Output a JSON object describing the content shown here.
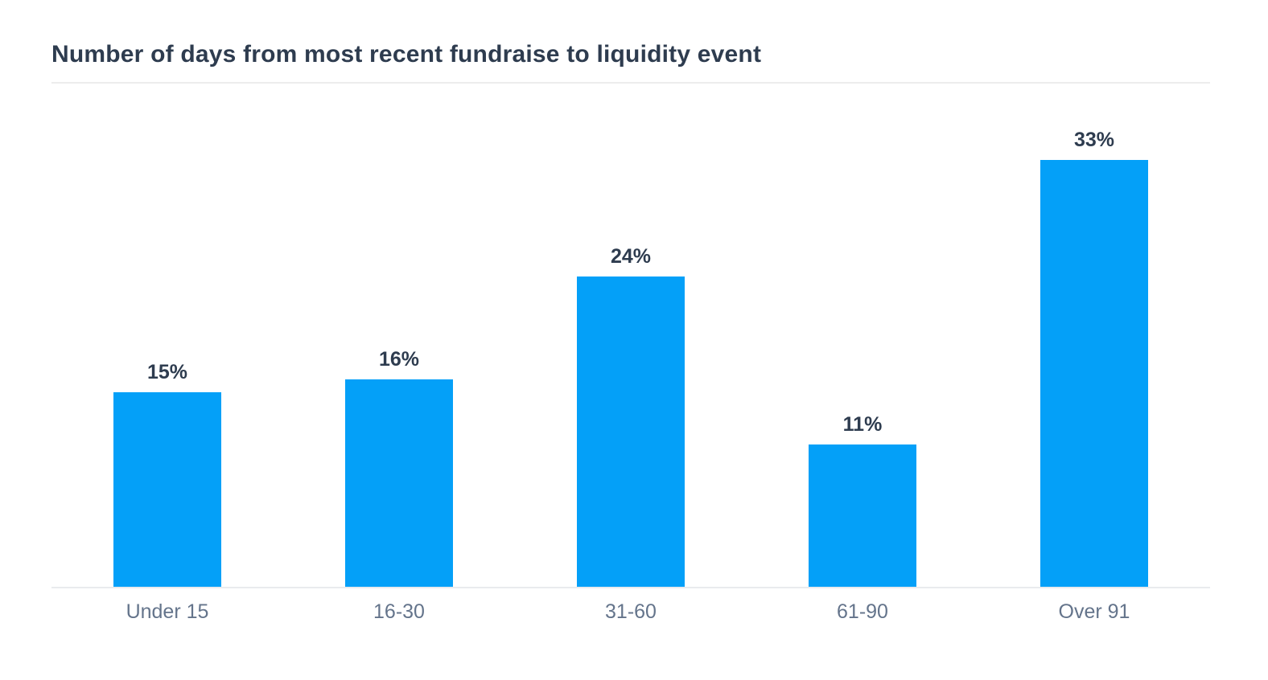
{
  "header": {
    "title": "Number of days from most recent fundraise to liquidity event"
  },
  "chart_data": {
    "type": "bar",
    "title": "Number of days from most recent fundraise to liquidity event",
    "categories": [
      "Under 15",
      "16-30",
      "31-60",
      "61-90",
      "Over 91"
    ],
    "values": [
      15,
      16,
      24,
      11,
      33
    ],
    "value_labels": [
      "15%",
      "16%",
      "24%",
      "11%",
      "33%"
    ],
    "xlabel": "",
    "ylabel": "",
    "ylim": [
      0,
      36
    ],
    "grid": false,
    "legend": false,
    "bar_color": "#04a0f8",
    "value_label_color": "#2e3c4f",
    "category_label_color": "#64748b",
    "axis_line_color": "#e9ebee",
    "title_color": "#2e3c4f",
    "divider_color": "#ededed",
    "background_color": "#ffffff"
  }
}
